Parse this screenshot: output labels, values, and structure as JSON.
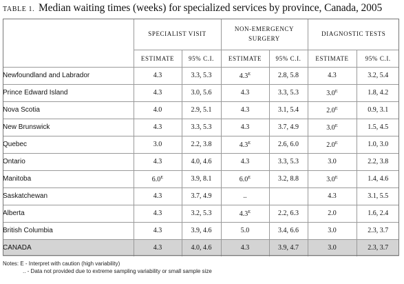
{
  "title": {
    "label": "TABLE 1.",
    "text": "Median waiting times (weeks) for specialized services by province, Canada, 2005"
  },
  "groups": [
    "SPECIALIST VISIT",
    "NON-EMERGENCY SURGERY",
    "DIAGNOSTIC TESTS"
  ],
  "subheaders": {
    "estimate": "ESTIMATE",
    "ci": "95% C.I."
  },
  "rows": [
    {
      "name": "Newfoundland and Labrador",
      "cells": [
        [
          "4.3",
          ""
        ],
        [
          "3.3, 5.3",
          ""
        ],
        [
          "4.3",
          "E"
        ],
        [
          "2.8, 5.8",
          ""
        ],
        [
          "4.3",
          ""
        ],
        [
          "3.2, 5.4",
          ""
        ]
      ]
    },
    {
      "name": "Prince Edward Island",
      "cells": [
        [
          "4.3",
          ""
        ],
        [
          "3.0, 5.6",
          ""
        ],
        [
          "4.3",
          ""
        ],
        [
          "3.3, 5.3",
          ""
        ],
        [
          "3.0",
          "E"
        ],
        [
          "1.8, 4.2",
          ""
        ]
      ]
    },
    {
      "name": "Nova Scotia",
      "cells": [
        [
          "4.0",
          ""
        ],
        [
          "2.9, 5.1",
          ""
        ],
        [
          "4.3",
          ""
        ],
        [
          "3.1, 5.4",
          ""
        ],
        [
          "2.0",
          "E"
        ],
        [
          "0.9, 3.1",
          ""
        ]
      ]
    },
    {
      "name": "New Brunswick",
      "cells": [
        [
          "4.3",
          ""
        ],
        [
          "3.3, 5.3",
          ""
        ],
        [
          "4.3",
          ""
        ],
        [
          "3.7, 4.9",
          ""
        ],
        [
          "3.0",
          "E"
        ],
        [
          "1.5, 4.5",
          ""
        ]
      ]
    },
    {
      "name": "Quebec",
      "cells": [
        [
          "3.0",
          ""
        ],
        [
          "2.2, 3.8",
          ""
        ],
        [
          "4.3",
          "E"
        ],
        [
          "2.6, 6.0",
          ""
        ],
        [
          "2.0",
          "E"
        ],
        [
          "1.0, 3.0",
          ""
        ]
      ]
    },
    {
      "name": "Ontario",
      "cells": [
        [
          "4.3",
          ""
        ],
        [
          "4.0, 4.6",
          ""
        ],
        [
          "4.3",
          ""
        ],
        [
          "3.3, 5.3",
          ""
        ],
        [
          "3.0",
          ""
        ],
        [
          "2.2, 3.8",
          ""
        ]
      ]
    },
    {
      "name": "Manitoba",
      "cells": [
        [
          "6.0",
          "E"
        ],
        [
          "3.9, 8.1",
          ""
        ],
        [
          "6.0",
          "E"
        ],
        [
          "3.2, 8.8",
          ""
        ],
        [
          "3.0",
          "E"
        ],
        [
          "1.4, 4.6",
          ""
        ]
      ]
    },
    {
      "name": "Saskatchewan",
      "cells": [
        [
          "4.3",
          ""
        ],
        [
          "3.7, 4.9",
          ""
        ],
        [
          "..",
          ""
        ],
        [
          "",
          ""
        ],
        [
          "4.3",
          ""
        ],
        [
          "3.1, 5.5",
          ""
        ]
      ]
    },
    {
      "name": "Alberta",
      "cells": [
        [
          "4.3",
          ""
        ],
        [
          "3.2, 5.3",
          ""
        ],
        [
          "4.3",
          "E"
        ],
        [
          "2.2, 6.3",
          ""
        ],
        [
          "2.0",
          ""
        ],
        [
          "1.6, 2.4",
          ""
        ]
      ]
    },
    {
      "name": "British Columbia",
      "cells": [
        [
          "4.3",
          ""
        ],
        [
          "3.9, 4.6",
          ""
        ],
        [
          "5.0",
          ""
        ],
        [
          "3.4, 6.6",
          ""
        ],
        [
          "3.0",
          ""
        ],
        [
          "2.3, 3.7",
          ""
        ]
      ]
    },
    {
      "name": "CANADA",
      "cells": [
        [
          "4.3",
          ""
        ],
        [
          "4.0, 4.6",
          ""
        ],
        [
          "4.3",
          ""
        ],
        [
          "3.9, 4.7",
          ""
        ],
        [
          "3.0",
          ""
        ],
        [
          "2.3, 3.7",
          ""
        ]
      ]
    }
  ],
  "notes": {
    "line1": "Notes:  E - Interpret with caution (high variability)",
    "line2": ".. - Data not provided due to extreme sampling variability or small sample size"
  }
}
